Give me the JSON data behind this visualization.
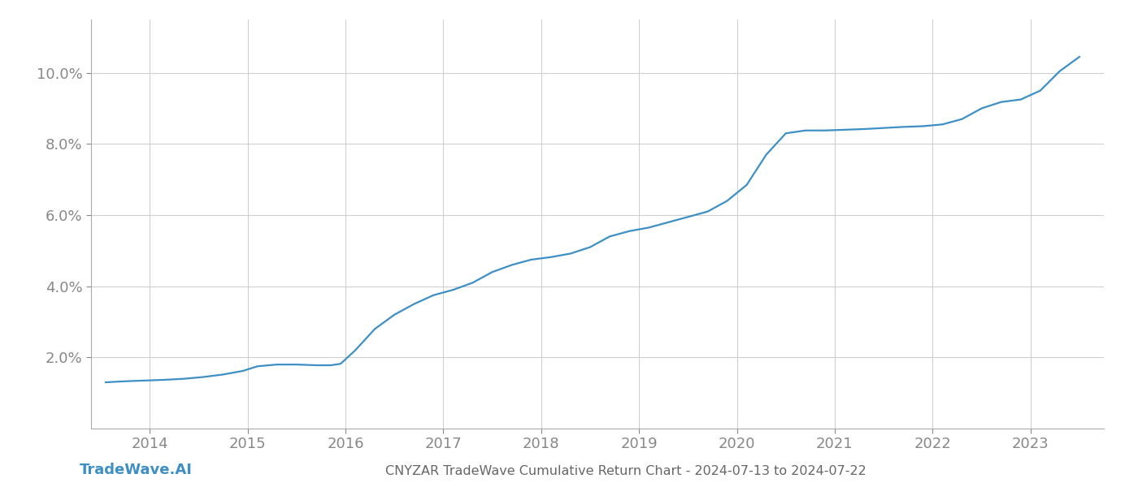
{
  "title": "CNYZAR TradeWave Cumulative Return Chart - 2024-07-13 to 2024-07-22",
  "watermark": "TradeWave.AI",
  "line_color": "#3d8fc4",
  "background_color": "#ffffff",
  "grid_color": "#d0d0d0",
  "x_years": [
    2014,
    2015,
    2016,
    2017,
    2018,
    2019,
    2020,
    2021,
    2022,
    2023
  ],
  "x_data": [
    2013.55,
    2013.75,
    2013.95,
    2014.15,
    2014.35,
    2014.55,
    2014.75,
    2014.95,
    2015.1,
    2015.3,
    2015.5,
    2015.7,
    2015.85,
    2015.95,
    2016.1,
    2016.3,
    2016.5,
    2016.7,
    2016.9,
    2017.1,
    2017.3,
    2017.5,
    2017.7,
    2017.9,
    2018.1,
    2018.3,
    2018.5,
    2018.7,
    2018.9,
    2019.1,
    2019.3,
    2019.5,
    2019.7,
    2019.9,
    2020.1,
    2020.3,
    2020.5,
    2020.7,
    2020.9,
    2021.1,
    2021.3,
    2021.5,
    2021.7,
    2021.9,
    2022.1,
    2022.3,
    2022.5,
    2022.7,
    2022.9,
    2023.1,
    2023.3,
    2023.5
  ],
  "y_data": [
    1.3,
    1.33,
    1.35,
    1.37,
    1.4,
    1.45,
    1.52,
    1.62,
    1.75,
    1.8,
    1.8,
    1.78,
    1.78,
    1.82,
    2.2,
    2.8,
    3.2,
    3.5,
    3.75,
    3.9,
    4.1,
    4.4,
    4.6,
    4.75,
    4.82,
    4.92,
    5.1,
    5.4,
    5.55,
    5.65,
    5.8,
    5.95,
    6.1,
    6.4,
    6.85,
    7.7,
    8.3,
    8.38,
    8.38,
    8.4,
    8.42,
    8.45,
    8.48,
    8.5,
    8.55,
    8.7,
    9.0,
    9.18,
    9.25,
    9.5,
    10.05,
    10.45
  ],
  "ylim": [
    0.0,
    11.5
  ],
  "yticks": [
    2.0,
    4.0,
    6.0,
    8.0,
    10.0
  ],
  "xlim": [
    2013.4,
    2023.75
  ],
  "title_color": "#666666",
  "tick_color": "#888888",
  "axis_color": "#aaaaaa",
  "watermark_color": "#3d8fc4",
  "title_fontsize": 11.5,
  "tick_fontsize": 13,
  "watermark_fontsize": 13,
  "line_width": 1.6
}
